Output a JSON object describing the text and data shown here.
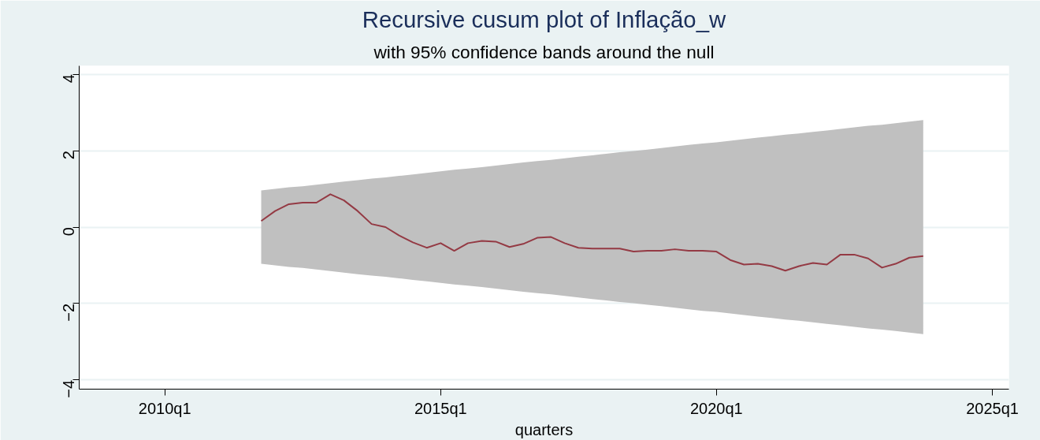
{
  "chart_data": {
    "type": "line",
    "title": "Recursive cusum plot of Inflação_w",
    "subtitle": "with 95% confidence bands around the null",
    "xlabel": "quarters",
    "x": [
      "2011-10",
      "2012-01",
      "2012-04",
      "2012-07",
      "2012-10",
      "2013-01",
      "2013-04",
      "2013-07",
      "2013-10",
      "2014-01",
      "2014-04",
      "2014-07",
      "2014-10",
      "2015-01",
      "2015-04",
      "2015-07",
      "2015-10",
      "2016-01",
      "2016-04",
      "2016-07",
      "2016-10",
      "2017-01",
      "2017-04",
      "2017-07",
      "2017-10",
      "2018-01",
      "2018-04",
      "2018-07",
      "2018-10",
      "2019-01",
      "2019-04",
      "2019-07",
      "2019-10",
      "2020-01",
      "2020-04",
      "2020-07",
      "2020-10",
      "2021-01",
      "2021-04",
      "2021-07",
      "2021-10",
      "2022-01",
      "2022-04",
      "2022-07",
      "2022-10",
      "2023-01",
      "2023-04",
      "2023-07",
      "2023-10"
    ],
    "series": [
      {
        "color": "#943a44",
        "values": [
          0.16,
          0.42,
          0.6,
          0.64,
          0.64,
          0.86,
          0.7,
          0.42,
          0.08,
          0.0,
          -0.22,
          -0.4,
          -0.54,
          -0.42,
          -0.62,
          -0.42,
          -0.36,
          -0.38,
          -0.52,
          -0.44,
          -0.28,
          -0.26,
          -0.42,
          -0.54,
          -0.56,
          -0.56,
          -0.56,
          -0.64,
          -0.62,
          -0.62,
          -0.58,
          -0.62,
          -0.62,
          -0.64,
          -0.86,
          -0.98,
          -0.96,
          -1.02,
          -1.14,
          -1.02,
          -0.94,
          -0.98,
          -0.72,
          -0.72,
          -0.82,
          -1.06,
          -0.96,
          -0.8,
          -0.76
        ],
        "lower": [
          -0.96,
          -1.0,
          -1.04,
          -1.07,
          -1.11,
          -1.15,
          -1.19,
          -1.23,
          -1.27,
          -1.3,
          -1.34,
          -1.38,
          -1.42,
          -1.46,
          -1.5,
          -1.53,
          -1.57,
          -1.61,
          -1.65,
          -1.69,
          -1.73,
          -1.76,
          -1.8,
          -1.84,
          -1.88,
          -1.92,
          -1.96,
          -1.99,
          -2.03,
          -2.07,
          -2.11,
          -2.15,
          -2.19,
          -2.22,
          -2.26,
          -2.3,
          -2.34,
          -2.38,
          -2.42,
          -2.45,
          -2.49,
          -2.53,
          -2.57,
          -2.61,
          -2.65,
          -2.68,
          -2.72,
          -2.76,
          -2.8
        ],
        "upper": [
          0.96,
          1.0,
          1.04,
          1.07,
          1.11,
          1.15,
          1.19,
          1.23,
          1.27,
          1.3,
          1.34,
          1.38,
          1.42,
          1.46,
          1.5,
          1.53,
          1.57,
          1.61,
          1.65,
          1.69,
          1.73,
          1.76,
          1.8,
          1.84,
          1.88,
          1.92,
          1.96,
          1.99,
          2.03,
          2.07,
          2.11,
          2.15,
          2.19,
          2.22,
          2.26,
          2.3,
          2.34,
          2.38,
          2.42,
          2.45,
          2.49,
          2.53,
          2.57,
          2.61,
          2.65,
          2.68,
          2.72,
          2.76,
          2.8
        ]
      }
    ],
    "xlim": [
      "2008-06-13",
      "2025-04-20"
    ],
    "ylim": [
      -4.24,
      4.22
    ],
    "xticks": [
      {
        "value": "2010-01",
        "label": "2010q1"
      },
      {
        "value": "2015-01",
        "label": "2015q1"
      },
      {
        "value": "2020-01",
        "label": "2020q1"
      },
      {
        "value": "2025-01",
        "label": "2025q1"
      }
    ],
    "yticks": [
      -4,
      -2,
      0,
      2,
      4
    ],
    "grid": "y",
    "marker": "none",
    "line_style": "solid"
  }
}
